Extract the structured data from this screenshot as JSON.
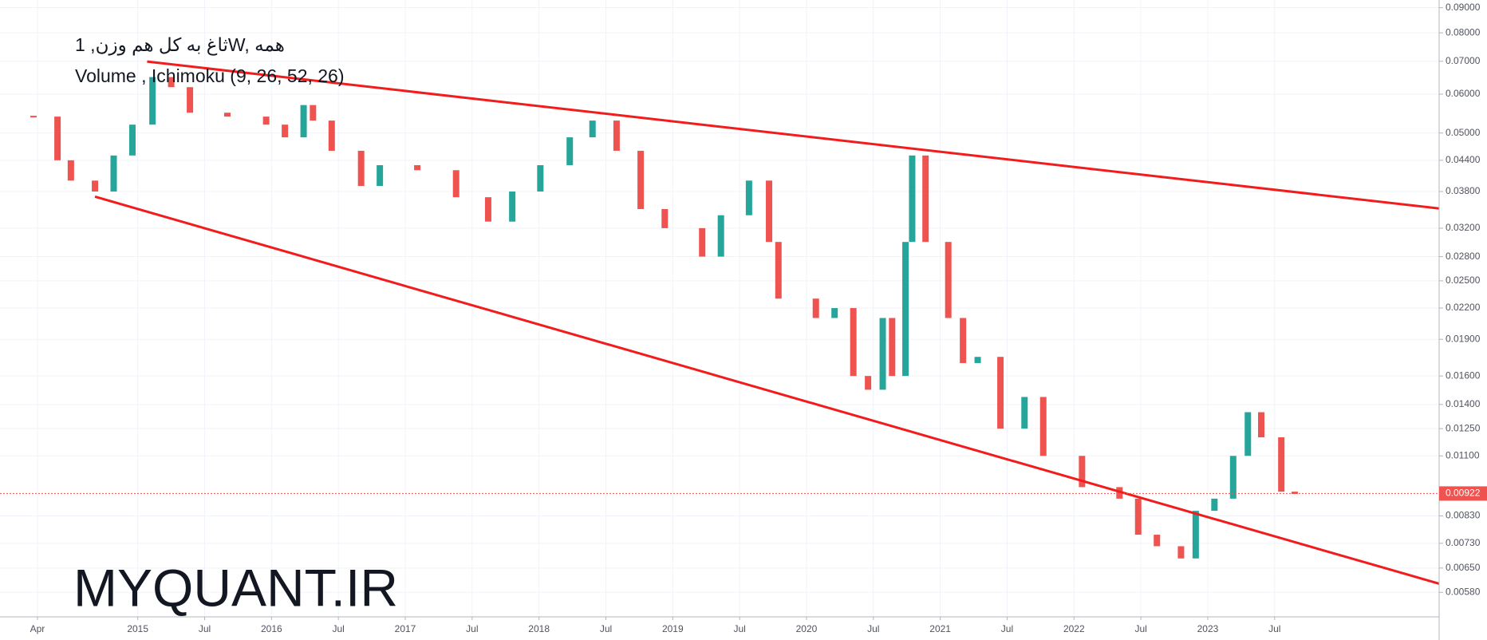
{
  "chart_data": {
    "type": "candlestick",
    "title": "ثاغ به کل هم وزن, 1W, همه",
    "subtitle": "Volume , Ichimoku (9, 26, 52, 26)",
    "watermark": "MYQUANT.IR",
    "log_scale": true,
    "grid": true,
    "up_color": "#26a69a",
    "down_color": "#ef5350",
    "trend_color": "#f21c1c",
    "x": [
      2014.22,
      2014.4,
      2014.5,
      2014.68,
      2014.82,
      2014.96,
      2015.11,
      2015.25,
      2015.39,
      2015.67,
      2015.96,
      2016.1,
      2016.24,
      2016.31,
      2016.45,
      2016.67,
      2016.81,
      2017.09,
      2017.38,
      2017.62,
      2017.8,
      2018.01,
      2018.23,
      2018.4,
      2018.58,
      2018.76,
      2018.94,
      2019.22,
      2019.36,
      2019.57,
      2019.72,
      2019.79,
      2020.07,
      2020.21,
      2020.35,
      2020.46,
      2020.57,
      2020.64,
      2020.74,
      2020.79,
      2020.89,
      2021.06,
      2021.17,
      2021.28,
      2021.45,
      2021.63,
      2021.77,
      2022.06,
      2022.34,
      2022.48,
      2022.62,
      2022.8,
      2022.91,
      2023.05,
      2023.19,
      2023.3,
      2023.4,
      2023.55,
      2023.65
    ],
    "values": [
      0.054,
      0.044,
      0.04,
      0.038,
      0.045,
      0.052,
      0.065,
      0.062,
      0.055,
      0.054,
      0.052,
      0.049,
      0.057,
      0.053,
      0.046,
      0.039,
      0.043,
      0.042,
      0.037,
      0.033,
      0.038,
      0.043,
      0.049,
      0.053,
      0.046,
      0.035,
      0.032,
      0.028,
      0.034,
      0.04,
      0.03,
      0.023,
      0.021,
      0.022,
      0.016,
      0.015,
      0.021,
      0.016,
      0.03,
      0.045,
      0.03,
      0.021,
      0.017,
      0.0175,
      0.0125,
      0.0145,
      0.011,
      0.0095,
      0.009,
      0.0076,
      0.0072,
      0.0068,
      0.0085,
      0.009,
      0.011,
      0.0135,
      0.012,
      0.0093,
      0.0092
    ],
    "last_price": 0.00922,
    "trendlines": [
      {
        "x": [
          2015.07,
          2024.73
        ],
        "values": [
          0.0699,
          0.0351
        ]
      },
      {
        "x": [
          2014.68,
          2024.73
        ],
        "values": [
          0.0371,
          0.00604
        ]
      }
    ],
    "xlim": [
      2013.97,
      2024.73
    ],
    "xticks": [
      {
        "value": 2014.25,
        "label": "Apr"
      },
      2015,
      {
        "value": 2015.5,
        "label": "Jul"
      },
      2016,
      {
        "value": 2016.5,
        "label": "Jul"
      },
      2017,
      {
        "value": 2017.5,
        "label": "Jul"
      },
      2018,
      {
        "value": 2018.5,
        "label": "Jul"
      },
      2019,
      {
        "value": 2019.5,
        "label": "Jul"
      },
      2020,
      {
        "value": 2020.5,
        "label": "Jul"
      },
      2021,
      {
        "value": 2021.5,
        "label": "Jul"
      },
      2022,
      {
        "value": 2022.5,
        "label": "Jul"
      },
      2023,
      {
        "value": 2023.5,
        "label": "Jul"
      }
    ],
    "ylim": [
      0.00517,
      0.0933
    ],
    "yticks": [
      {
        "value": 0.09,
        "label": "0.09000"
      },
      {
        "value": 0.08,
        "label": "0.08000"
      },
      {
        "value": 0.07,
        "label": "0.07000"
      },
      {
        "value": 0.06,
        "label": "0.06000"
      },
      {
        "value": 0.05,
        "label": "0.05000"
      },
      {
        "value": 0.044,
        "label": "0.04400"
      },
      {
        "value": 0.038,
        "label": "0.03800"
      },
      {
        "value": 0.032,
        "label": "0.03200"
      },
      {
        "value": 0.028,
        "label": "0.02800"
      },
      {
        "value": 0.025,
        "label": "0.02500"
      },
      {
        "value": 0.022,
        "label": "0.02200"
      },
      {
        "value": 0.019,
        "label": "0.01900"
      },
      {
        "value": 0.016,
        "label": "0.01600"
      },
      {
        "value": 0.014,
        "label": "0.01400"
      },
      {
        "value": 0.0125,
        "label": "0.01250"
      },
      {
        "value": 0.011,
        "label": "0.01100"
      },
      {
        "value": 0.0083,
        "label": "0.00830"
      },
      {
        "value": 0.0073,
        "label": "0.00730"
      },
      {
        "value": 0.0065,
        "label": "0.00650"
      },
      {
        "value": 0.0058,
        "label": "0.00580"
      }
    ]
  }
}
